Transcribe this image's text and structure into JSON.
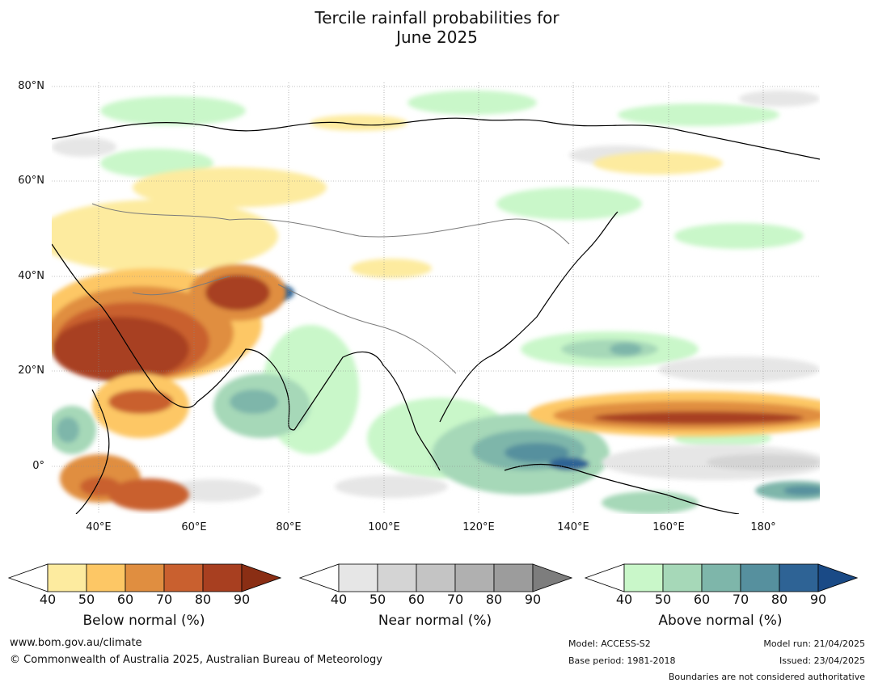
{
  "title": {
    "line1": "Tercile rainfall probabilities for",
    "line2": "June 2025"
  },
  "map": {
    "lat_labels": [
      "80°N",
      "60°N",
      "40°N",
      "20°N",
      "0°"
    ],
    "lon_labels": [
      "40°E",
      "60°E",
      "80°E",
      "100°E",
      "120°E",
      "140°E",
      "160°E",
      "180°"
    ]
  },
  "legends": [
    {
      "title": "Below normal (%)",
      "ticks": [
        "40",
        "50",
        "60",
        "70",
        "80",
        "90"
      ],
      "colors": [
        "#ffffff",
        "#fdeb9f",
        "#fdc765",
        "#e08e40",
        "#c9602f",
        "#a83f20",
        "#8a2e14"
      ]
    },
    {
      "title": "Near normal (%)",
      "ticks": [
        "40",
        "50",
        "60",
        "70",
        "80",
        "90"
      ],
      "colors": [
        "#ffffff",
        "#e6e6e6",
        "#d4d4d4",
        "#c4c4c4",
        "#b0b0b0",
        "#9c9c9c",
        "#7d7d7d"
      ]
    },
    {
      "title": "Above normal (%)",
      "ticks": [
        "40",
        "50",
        "60",
        "70",
        "80",
        "90"
      ],
      "colors": [
        "#ffffff",
        "#c9f7c9",
        "#a6d8b8",
        "#7eb6aa",
        "#56909e",
        "#2e6395",
        "#1a4a86"
      ]
    }
  ],
  "footer": {
    "url": "www.bom.gov.au/climate",
    "copyright": "© Commonwealth of Australia 2025, Australian Bureau of Meteorology",
    "model": "Model: ACCESS-S2",
    "base_period": "Base period: 1981-2018",
    "model_run": "Model run: 21/04/2025",
    "issued": "Issued: 23/04/2025",
    "disclaimer": "Boundaries are not considered authoritative"
  }
}
